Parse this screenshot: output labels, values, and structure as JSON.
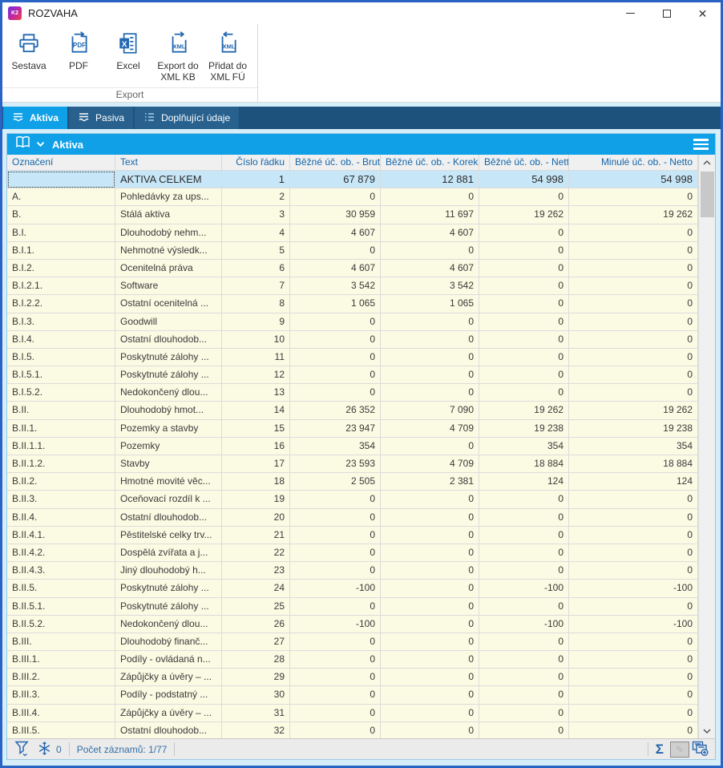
{
  "window": {
    "title": "ROZVAHA",
    "logo_text": "K2",
    "controls": {
      "minimize": "minimize",
      "maximize": "maximize",
      "close": "close"
    }
  },
  "toolbar": {
    "group_label": "Export",
    "buttons": [
      {
        "label": "Sestava",
        "icon": "printer-icon"
      },
      {
        "label": "PDF",
        "icon": "pdf-export-icon"
      },
      {
        "label": "Excel",
        "icon": "excel-icon"
      },
      {
        "label": "Export do XML KB",
        "icon": "xml-export-icon"
      },
      {
        "label": "Přidat do XML FÚ",
        "icon": "xml-add-icon"
      }
    ]
  },
  "tabs": [
    {
      "label": "Aktiva",
      "active": true,
      "icon": "balance-lines-icon"
    },
    {
      "label": "Pasiva",
      "active": false,
      "icon": "balance-lines-icon"
    },
    {
      "label": "Doplňující údaje",
      "active": false,
      "icon": "list-icon"
    }
  ],
  "panel": {
    "title": "Aktiva"
  },
  "table": {
    "columns": [
      {
        "label": "Označení",
        "align": "left"
      },
      {
        "label": "Text",
        "align": "left"
      },
      {
        "label": "Číslo řádku",
        "align": "right"
      },
      {
        "label": "Běžné úč. ob. - Brutto",
        "align": "right"
      },
      {
        "label": "Běžné úč. ob. - Korekce",
        "align": "right"
      },
      {
        "label": "Běžné úč. ob. - Netto",
        "align": "right"
      },
      {
        "label": "Minulé úč. ob. - Netto",
        "align": "right"
      }
    ],
    "selected_row_index": 0,
    "rows": [
      [
        "",
        "AKTIVA CELKEM",
        "1",
        "67 879",
        "12 881",
        "54 998",
        "54 998"
      ],
      [
        "A.",
        "Pohledávky za ups...",
        "2",
        "0",
        "0",
        "0",
        "0"
      ],
      [
        "B.",
        "Stálá aktiva",
        "3",
        "30 959",
        "11 697",
        "19 262",
        "19 262"
      ],
      [
        "B.I.",
        "Dlouhodobý nehm...",
        "4",
        "4 607",
        "4 607",
        "0",
        "0"
      ],
      [
        "B.I.1.",
        "Nehmotné výsledk...",
        "5",
        "0",
        "0",
        "0",
        "0"
      ],
      [
        "B.I.2.",
        "Ocenitelná práva",
        "6",
        "4 607",
        "4 607",
        "0",
        "0"
      ],
      [
        "B.I.2.1.",
        "Software",
        "7",
        "3 542",
        "3 542",
        "0",
        "0"
      ],
      [
        "B.I.2.2.",
        "Ostatní ocenitelná ...",
        "8",
        "1 065",
        "1 065",
        "0",
        "0"
      ],
      [
        "B.I.3.",
        "Goodwill",
        "9",
        "0",
        "0",
        "0",
        "0"
      ],
      [
        "B.I.4.",
        "Ostatní dlouhodob...",
        "10",
        "0",
        "0",
        "0",
        "0"
      ],
      [
        "B.I.5.",
        "Poskytnuté zálohy ...",
        "11",
        "0",
        "0",
        "0",
        "0"
      ],
      [
        "B.I.5.1.",
        "Poskytnuté zálohy ...",
        "12",
        "0",
        "0",
        "0",
        "0"
      ],
      [
        "B.I.5.2.",
        "Nedokončený dlou...",
        "13",
        "0",
        "0",
        "0",
        "0"
      ],
      [
        "B.II.",
        "Dlouhodobý hmot...",
        "14",
        "26 352",
        "7 090",
        "19 262",
        "19 262"
      ],
      [
        "B.II.1.",
        "Pozemky a stavby",
        "15",
        "23 947",
        "4 709",
        "19 238",
        "19 238"
      ],
      [
        "B.II.1.1.",
        "Pozemky",
        "16",
        "354",
        "0",
        "354",
        "354"
      ],
      [
        "B.II.1.2.",
        "Stavby",
        "17",
        "23 593",
        "4 709",
        "18 884",
        "18 884"
      ],
      [
        "B.II.2.",
        "Hmotné movité věc...",
        "18",
        "2 505",
        "2 381",
        "124",
        "124"
      ],
      [
        "B.II.3.",
        "Oceňovací rozdíl k ...",
        "19",
        "0",
        "0",
        "0",
        "0"
      ],
      [
        "B.II.4.",
        "Ostatní dlouhodob...",
        "20",
        "0",
        "0",
        "0",
        "0"
      ],
      [
        "B.II.4.1.",
        "Pěstitelské celky trv...",
        "21",
        "0",
        "0",
        "0",
        "0"
      ],
      [
        "B.II.4.2.",
        "Dospělá zvířata a j...",
        "22",
        "0",
        "0",
        "0",
        "0"
      ],
      [
        "B.II.4.3.",
        "Jiný dlouhodobý h...",
        "23",
        "0",
        "0",
        "0",
        "0"
      ],
      [
        "B.II.5.",
        "Poskytnuté zálohy ...",
        "24",
        "-100",
        "0",
        "-100",
        "-100"
      ],
      [
        "B.II.5.1.",
        "Poskytnuté zálohy ...",
        "25",
        "0",
        "0",
        "0",
        "0"
      ],
      [
        "B.II.5.2.",
        "Nedokončený dlou...",
        "26",
        "-100",
        "0",
        "-100",
        "-100"
      ],
      [
        "B.III.",
        "Dlouhodobý finanč...",
        "27",
        "0",
        "0",
        "0",
        "0"
      ],
      [
        "B.III.1.",
        "Podíly - ovládaná n...",
        "28",
        "0",
        "0",
        "0",
        "0"
      ],
      [
        "B.III.2.",
        "Zápůjčky a úvěry – ...",
        "29",
        "0",
        "0",
        "0",
        "0"
      ],
      [
        "B.III.3.",
        "Podíly - podstatný ...",
        "30",
        "0",
        "0",
        "0",
        "0"
      ],
      [
        "B.III.4.",
        "Zápůjčky a úvěry – ...",
        "31",
        "0",
        "0",
        "0",
        "0"
      ],
      [
        "B.III.5.",
        "Ostatní dlouhodob...",
        "32",
        "0",
        "0",
        "0",
        "0"
      ]
    ]
  },
  "statusbar": {
    "frozen_count": "0",
    "record_count_label": "Počet záznamů: 1/77",
    "sigma_label": "Σ"
  },
  "colors": {
    "window_border": "#2A63C6",
    "accent_azure": "#0FA0E8",
    "tabstrip_dark_blue": "#1D527D",
    "inactive_tab_blue": "#28618E",
    "row_yellow": "#FBFAE3",
    "selected_row_blue": "#C7E7F8",
    "header_text_blue": "#1566A8",
    "ribbon_icon_blue": "#2268B2",
    "frame_cyan": "#D6EEF9"
  }
}
